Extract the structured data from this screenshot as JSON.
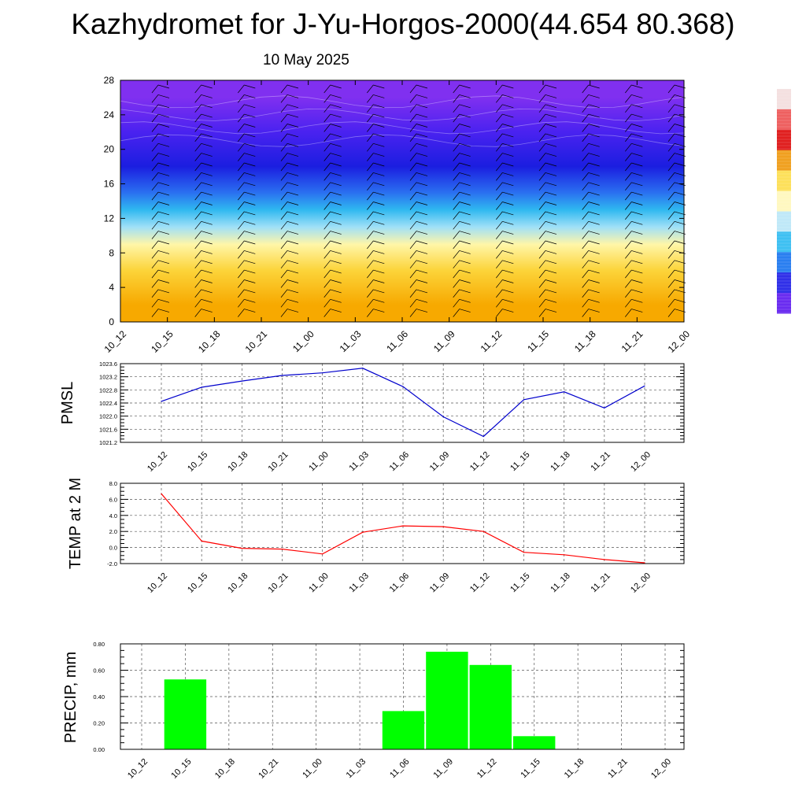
{
  "header": {
    "title": "Kazhydromet for J-Yu-Horgos-2000(44.654 80.368)",
    "subtitle": "10 May 2025"
  },
  "chart_data": [
    {
      "type": "heatmap",
      "title": "",
      "xlabel": "",
      "ylabel": "",
      "x": [
        "10_12",
        "10_15",
        "10_18",
        "10_21",
        "11_00",
        "11_03",
        "11_06",
        "11_09",
        "11_12",
        "11_15",
        "11_18",
        "11_21",
        "12_00"
      ],
      "y_ticks": [
        0,
        4,
        8,
        12,
        16,
        20,
        24,
        28
      ],
      "ylim": [
        0,
        28
      ],
      "color_levels": [
        {
          "from": 0,
          "to": 4,
          "color": "#f7a900"
        },
        {
          "from": 4,
          "to": 8,
          "color": "#fcd43a"
        },
        {
          "from": 8,
          "to": 10,
          "color": "#fff6a8"
        },
        {
          "from": 10,
          "to": 12,
          "color": "#9fe0f7"
        },
        {
          "from": 12,
          "to": 14,
          "color": "#2fb8f0"
        },
        {
          "from": 14,
          "to": 16,
          "color": "#2a6ff0"
        },
        {
          "from": 16,
          "to": 20,
          "color": "#1b1ee0"
        },
        {
          "from": 20,
          "to": 24,
          "color": "#4a22f0"
        },
        {
          "from": 24,
          "to": 28,
          "color": "#8030f0"
        }
      ],
      "overlay": "wind barbs",
      "colorbar": [
        "#f4e0e0",
        "#ee6060",
        "#e02020",
        "#f0a020",
        "#fde05a",
        "#fff8c0",
        "#bfe8f8",
        "#3ec0f2",
        "#2a7ff0",
        "#3030e8",
        "#6a2cf0"
      ]
    },
    {
      "type": "line",
      "title": "",
      "ylabel": "PMSL",
      "xlabel": "",
      "x": [
        "10_12",
        "10_15",
        "10_18",
        "10_21",
        "11_00",
        "11_03",
        "11_06",
        "11_09",
        "11_12",
        "11_15",
        "11_18",
        "11_21",
        "12_00"
      ],
      "y_ticks": [
        "1021.2",
        "1021.6",
        "1022.0",
        "1022.4",
        "1022.8",
        "1023.2",
        "1023.6"
      ],
      "ylim": [
        1021.2,
        1023.6
      ],
      "series": [
        {
          "values": [
            1022.45,
            1022.88,
            1023.07,
            1023.24,
            1023.32,
            1023.46,
            1022.9,
            1021.98,
            1021.38,
            1022.5,
            1022.74,
            1022.25,
            1022.92
          ],
          "color": "#0000cc"
        }
      ],
      "grid": true
    },
    {
      "type": "line",
      "title": "",
      "ylabel": "TEMP at 2 M",
      "xlabel": "",
      "x": [
        "10_12",
        "10_15",
        "10_18",
        "10_21",
        "11_00",
        "11_03",
        "11_06",
        "11_09",
        "11_12",
        "11_15",
        "11_18",
        "11_21",
        "12_00"
      ],
      "y_ticks": [
        "-2.0",
        "0.0",
        "2.0",
        "4.0",
        "6.0",
        "8.0"
      ],
      "ylim": [
        -2.0,
        8.0
      ],
      "series": [
        {
          "values": [
            6.7,
            0.8,
            -0.1,
            -0.2,
            -0.8,
            1.9,
            2.7,
            2.6,
            2.0,
            -0.6,
            -0.9,
            -1.5,
            -1.9
          ],
          "color": "#ff0000"
        }
      ],
      "grid": true
    },
    {
      "type": "bar",
      "title": "",
      "ylabel": "PRECIP, mm",
      "xlabel": "",
      "x": [
        "10_12",
        "10_15",
        "10_18",
        "10_21",
        "11_00",
        "11_03",
        "11_06",
        "11_09",
        "11_12",
        "11_15",
        "11_18",
        "11_21",
        "12_00"
      ],
      "y_ticks": [
        "0.00",
        "0.20",
        "0.40",
        "0.60",
        "0.80"
      ],
      "ylim": [
        0,
        0.8
      ],
      "values": [
        0,
        0.53,
        0,
        0,
        0,
        0,
        0.29,
        0.74,
        0.64,
        0.1,
        0,
        0,
        0
      ],
      "color": "#00ff00",
      "grid": true
    }
  ]
}
